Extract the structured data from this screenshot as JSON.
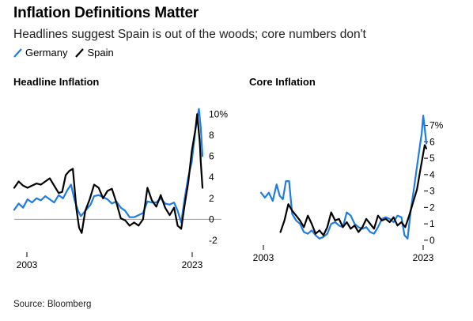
{
  "title": "Inflation Definitions Matter",
  "subtitle": "Headlines suggest Spain is out of the woods; core numbers don't",
  "legend": [
    {
      "label": "Germany",
      "color": "#1f7ce3"
    },
    {
      "label": "Spain",
      "color": "#000000"
    }
  ],
  "source": "Source: Bloomberg",
  "colors": {
    "germany": "#1f7ce3",
    "spain": "#000000",
    "zero_line": "#999999"
  },
  "chart_data": [
    {
      "type": "line",
      "title": "Headline Inflation",
      "x_labels": [
        "2003",
        "2023"
      ],
      "y_ticks": [
        "10%",
        "8",
        "6",
        "4",
        "2",
        "0",
        "-2"
      ],
      "y_tick_values": [
        10,
        8,
        6,
        4,
        2,
        0,
        -2
      ],
      "ylim": [
        -2,
        11
      ],
      "xlim": [
        2002.0,
        2023.2
      ],
      "grid": false,
      "series": [
        {
          "name": "Germany",
          "x": [
            2002.0,
            2002.5,
            2003.0,
            2003.5,
            2004.0,
            2004.5,
            2005.0,
            2005.5,
            2006.0,
            2006.5,
            2007.0,
            2007.5,
            2008.0,
            2008.4,
            2008.8,
            2009.2,
            2009.5,
            2009.8,
            2010.2,
            2010.6,
            2011.0,
            2011.5,
            2012.0,
            2012.5,
            2013.0,
            2013.5,
            2014.0,
            2014.5,
            2015.0,
            2015.5,
            2016.0,
            2016.5,
            2017.0,
            2017.5,
            2018.0,
            2018.5,
            2019.0,
            2019.5,
            2020.0,
            2020.4,
            2020.8,
            2021.2,
            2021.6,
            2022.0,
            2022.4,
            2022.8,
            2023.0,
            2023.2
          ],
          "values": [
            0.9,
            1.5,
            1.1,
            1.9,
            1.6,
            2.0,
            1.8,
            2.2,
            1.9,
            1.6,
            2.3,
            2.0,
            2.8,
            3.3,
            1.8,
            0.8,
            0.3,
            0.6,
            1.0,
            1.4,
            2.2,
            2.3,
            2.1,
            1.9,
            1.5,
            1.7,
            1.1,
            0.8,
            0.2,
            0.2,
            0.4,
            0.6,
            1.7,
            1.6,
            1.6,
            2.0,
            1.5,
            1.4,
            1.6,
            0.8,
            -0.3,
            2.0,
            4.0,
            5.5,
            8.5,
            10.5,
            8.7,
            6.0
          ]
        },
        {
          "name": "Spain",
          "x": [
            2002.0,
            2002.5,
            2003.0,
            2003.5,
            2004.0,
            2004.5,
            2005.0,
            2005.5,
            2006.0,
            2006.5,
            2007.0,
            2007.4,
            2007.8,
            2008.2,
            2008.6,
            2009.0,
            2009.3,
            2009.6,
            2010.0,
            2010.5,
            2011.0,
            2011.5,
            2012.0,
            2012.5,
            2013.0,
            2013.5,
            2014.0,
            2014.5,
            2015.0,
            2015.5,
            2016.0,
            2016.5,
            2017.0,
            2017.5,
            2018.0,
            2018.5,
            2019.0,
            2019.5,
            2020.0,
            2020.4,
            2020.8,
            2021.2,
            2021.6,
            2022.0,
            2022.4,
            2022.6,
            2022.9,
            2023.0,
            2023.2
          ],
          "values": [
            3.0,
            3.6,
            3.2,
            3.0,
            3.2,
            3.4,
            3.3,
            3.6,
            3.9,
            3.2,
            2.5,
            2.6,
            4.2,
            4.6,
            4.8,
            1.0,
            -0.8,
            -1.3,
            0.8,
            1.9,
            3.3,
            3.0,
            2.0,
            2.7,
            2.9,
            1.6,
            0.1,
            -0.1,
            -0.6,
            -0.3,
            -0.6,
            0.0,
            3.0,
            1.8,
            1.2,
            2.3,
            1.1,
            0.4,
            1.1,
            -0.6,
            -0.9,
            1.4,
            3.5,
            6.5,
            8.5,
            10.0,
            7.3,
            5.5,
            3.0
          ]
        }
      ]
    },
    {
      "type": "line",
      "title": "Core Inflation",
      "x_labels": [
        "2003",
        "2023"
      ],
      "y_ticks": [
        "7%",
        "6",
        "5",
        "4",
        "3",
        "2",
        "1",
        "0"
      ],
      "y_tick_values": [
        7,
        6,
        5,
        4,
        3,
        2,
        1,
        0
      ],
      "ylim": [
        -0.2,
        7.8
      ],
      "xlim": [
        2002.0,
        2023.2
      ],
      "grid": false,
      "series": [
        {
          "name": "Germany",
          "x": [
            2002.0,
            2002.5,
            2003.0,
            2003.5,
            2004.0,
            2004.4,
            2004.8,
            2005.2,
            2005.6,
            2006.0,
            2006.5,
            2007.0,
            2007.5,
            2008.0,
            2008.5,
            2009.0,
            2009.5,
            2010.0,
            2010.5,
            2011.0,
            2011.5,
            2012.0,
            2012.5,
            2013.0,
            2013.5,
            2014.0,
            2014.5,
            2015.0,
            2015.5,
            2016.0,
            2016.5,
            2017.0,
            2017.5,
            2018.0,
            2018.5,
            2019.0,
            2019.5,
            2020.0,
            2020.4,
            2020.8,
            2021.2,
            2021.6,
            2022.0,
            2022.3,
            2022.6,
            2022.8,
            2023.0,
            2023.2
          ],
          "values": [
            2.9,
            2.6,
            2.9,
            2.4,
            3.4,
            2.7,
            2.5,
            3.6,
            3.6,
            1.6,
            1.2,
            1.0,
            0.5,
            0.4,
            0.6,
            0.3,
            0.1,
            0.2,
            0.4,
            1.0,
            1.1,
            0.9,
            0.8,
            1.7,
            1.5,
            1.0,
            0.8,
            0.7,
            0.8,
            0.5,
            0.4,
            0.8,
            1.3,
            1.4,
            1.3,
            1.1,
            1.5,
            1.4,
            0.3,
            0.1,
            1.8,
            3.1,
            4.5,
            5.5,
            6.5,
            7.6,
            6.8,
            5.9
          ]
        },
        {
          "name": "Spain",
          "x": [
            2004.5,
            2005.0,
            2005.5,
            2006.0,
            2006.5,
            2007.0,
            2007.5,
            2008.0,
            2008.5,
            2009.0,
            2009.5,
            2010.0,
            2010.5,
            2011.0,
            2011.5,
            2012.0,
            2012.5,
            2013.0,
            2013.5,
            2014.0,
            2014.5,
            2015.0,
            2015.5,
            2016.0,
            2016.5,
            2017.0,
            2017.5,
            2018.0,
            2018.5,
            2019.0,
            2019.5,
            2020.0,
            2020.5,
            2021.0,
            2021.5,
            2022.0,
            2022.4,
            2022.8,
            2023.0,
            2023.2
          ],
          "values": [
            0.5,
            1.2,
            2.2,
            1.8,
            1.5,
            1.2,
            0.8,
            1.5,
            1.0,
            0.4,
            0.6,
            0.3,
            0.8,
            1.7,
            1.2,
            1.3,
            0.8,
            1.1,
            0.7,
            0.9,
            0.5,
            0.8,
            1.3,
            1.0,
            0.7,
            1.5,
            1.2,
            1.3,
            1.1,
            1.4,
            0.9,
            1.1,
            0.8,
            1.5,
            2.3,
            3.1,
            4.2,
            5.3,
            5.8,
            5.6
          ]
        }
      ]
    }
  ]
}
